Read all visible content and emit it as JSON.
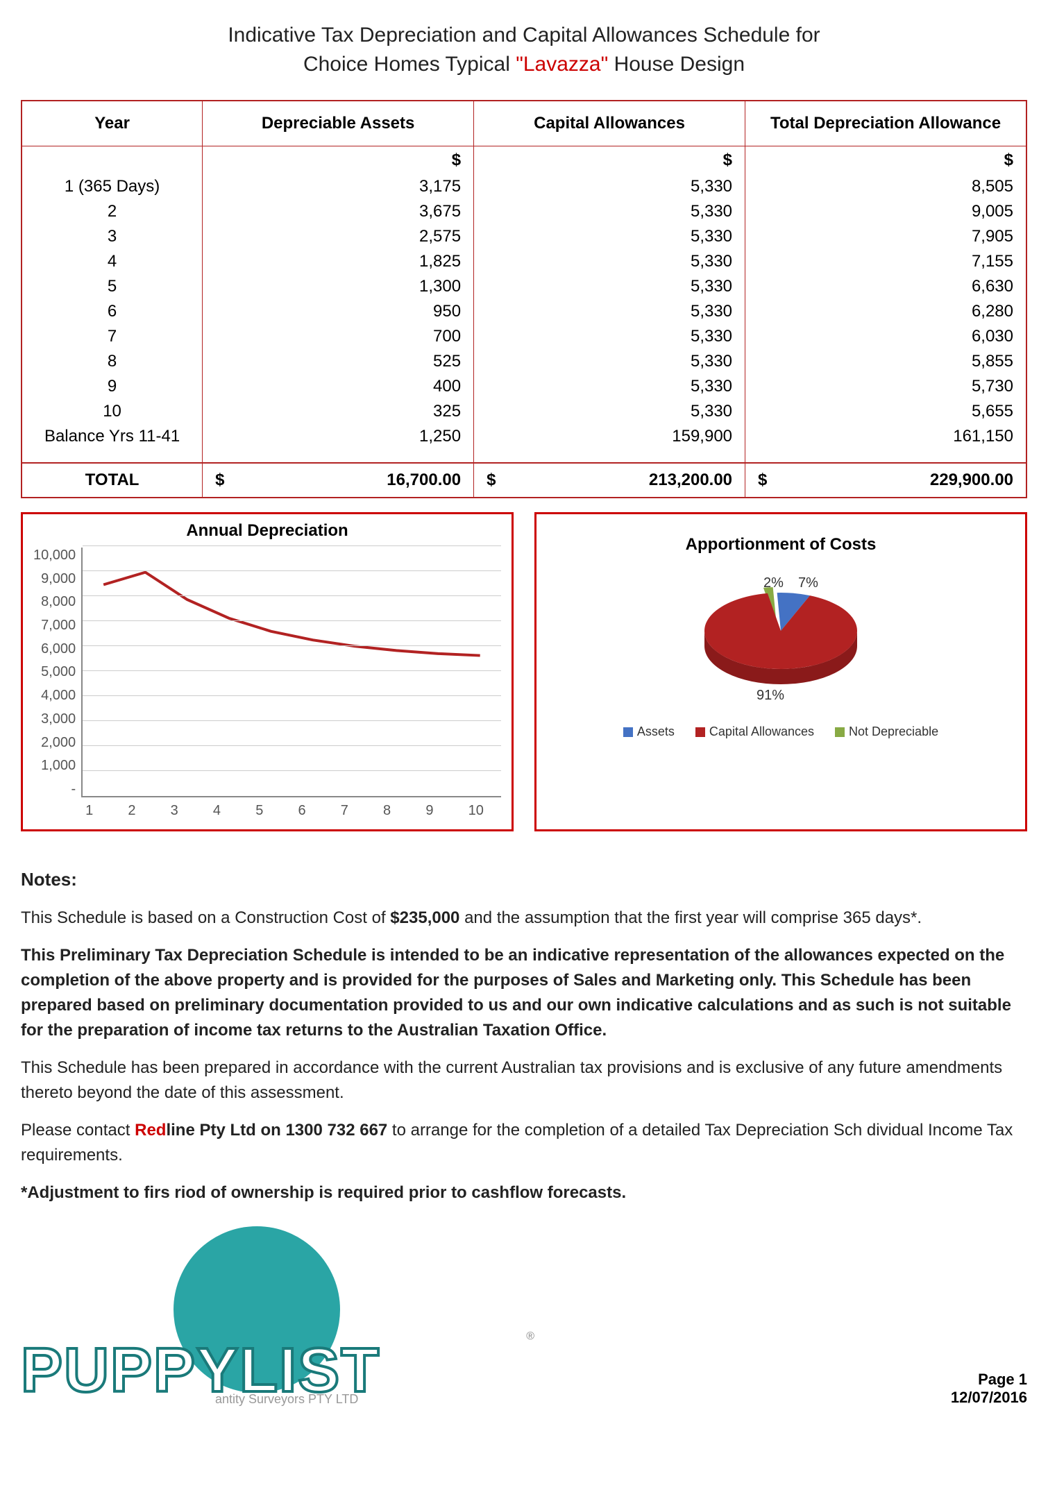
{
  "title_line1": "Indicative Tax Depreciation and Capital Allowances Schedule for",
  "title_line2a": "Choice Homes Typical ",
  "title_accent": "\"Lavazza\"",
  "title_line2b": " House Design",
  "table": {
    "headers": [
      "Year",
      "Depreciable Assets",
      "Capital Allowances",
      "Total Depreciation Allowance"
    ],
    "currency": "$",
    "rows": [
      {
        "year": "1 (365 Days)",
        "da": "3,175",
        "ca": "5,330",
        "tot": "8,505"
      },
      {
        "year": "2",
        "da": "3,675",
        "ca": "5,330",
        "tot": "9,005"
      },
      {
        "year": "3",
        "da": "2,575",
        "ca": "5,330",
        "tot": "7,905"
      },
      {
        "year": "4",
        "da": "1,825",
        "ca": "5,330",
        "tot": "7,155"
      },
      {
        "year": "5",
        "da": "1,300",
        "ca": "5,330",
        "tot": "6,630"
      },
      {
        "year": "6",
        "da": "950",
        "ca": "5,330",
        "tot": "6,280"
      },
      {
        "year": "7",
        "da": "700",
        "ca": "5,330",
        "tot": "6,030"
      },
      {
        "year": "8",
        "da": "525",
        "ca": "5,330",
        "tot": "5,855"
      },
      {
        "year": "9",
        "da": "400",
        "ca": "5,330",
        "tot": "5,730"
      },
      {
        "year": "10",
        "da": "325",
        "ca": "5,330",
        "tot": "5,655"
      },
      {
        "year": "Balance Yrs 11-41",
        "da": "1,250",
        "ca": "159,900",
        "tot": "161,150"
      }
    ],
    "total_label": "TOTAL",
    "totals": {
      "da": "16,700.00",
      "ca": "213,200.00",
      "tot": "229,900.00"
    }
  },
  "line_chart": {
    "title": "Annual Depreciation",
    "ylim": [
      0,
      10000
    ],
    "yticks": [
      "10,000",
      "9,000",
      "8,000",
      "7,000",
      "6,000",
      "5,000",
      "4,000",
      "3,000",
      "2,000",
      "1,000",
      "-"
    ],
    "xticks": [
      "1",
      "2",
      "3",
      "4",
      "5",
      "6",
      "7",
      "8",
      "9",
      "10"
    ],
    "values": [
      8505,
      9005,
      7905,
      7155,
      6630,
      6280,
      6030,
      5855,
      5730,
      5655
    ],
    "line_color": "#b22222",
    "grid_color": "#cccccc",
    "axis_color": "#888888"
  },
  "pie_chart": {
    "title": "Apportionment of Costs",
    "slices": [
      {
        "label": "Assets",
        "pct": "7%",
        "value": 7,
        "color": "#4472c4"
      },
      {
        "label": "Capital Allowances",
        "pct": "91%",
        "value": 91,
        "color": "#b22222"
      },
      {
        "label": "Not Depreciable",
        "pct": "2%",
        "value": 2,
        "color": "#88aa44"
      }
    ]
  },
  "notes": {
    "heading": "Notes:",
    "p1a": "This Schedule is based on a Construction Cost of ",
    "p1b": "$235,000",
    "p1c": " and the assumption that the first year will comprise 365 days*.",
    "p2": "This Preliminary Tax Depreciation Schedule is intended to be an indicative representation of the allowances expected on the completion of the above property and is provided for the purposes of Sales and Marketing only.  This Schedule has been prepared based on preliminary documentation provided to us and our own indicative calculations and as such is not suitable for the preparation of income tax returns to the Australian Taxation Office.",
    "p3": "This Schedule has been prepared in accordance with the current Australian tax provisions and is exclusive of any future amendments thereto beyond the date of this assessment.",
    "p4a": "Please contact ",
    "p4red": "Red",
    "p4b": "line",
    "p4covered": "                          ",
    "p4c": " Pty Ltd on 1300 732 667",
    "p4d": " to arrange for the completion of a detailed Tax Depreciation Sch",
    "p4covered2": "                                    ",
    "p4e": "dividual Income Tax requirements.",
    "p5a": "*Adjustment to firs",
    "p5covered": "                                      ",
    "p5b": "riod of ownership is required prior to cashflow forecasts."
  },
  "logo": {
    "text": "PUPPYLIST",
    "sub": "antity Surveyors PTY LTD",
    "reg": "®"
  },
  "footer": {
    "page": "Page 1",
    "date": "12/07/2016"
  }
}
